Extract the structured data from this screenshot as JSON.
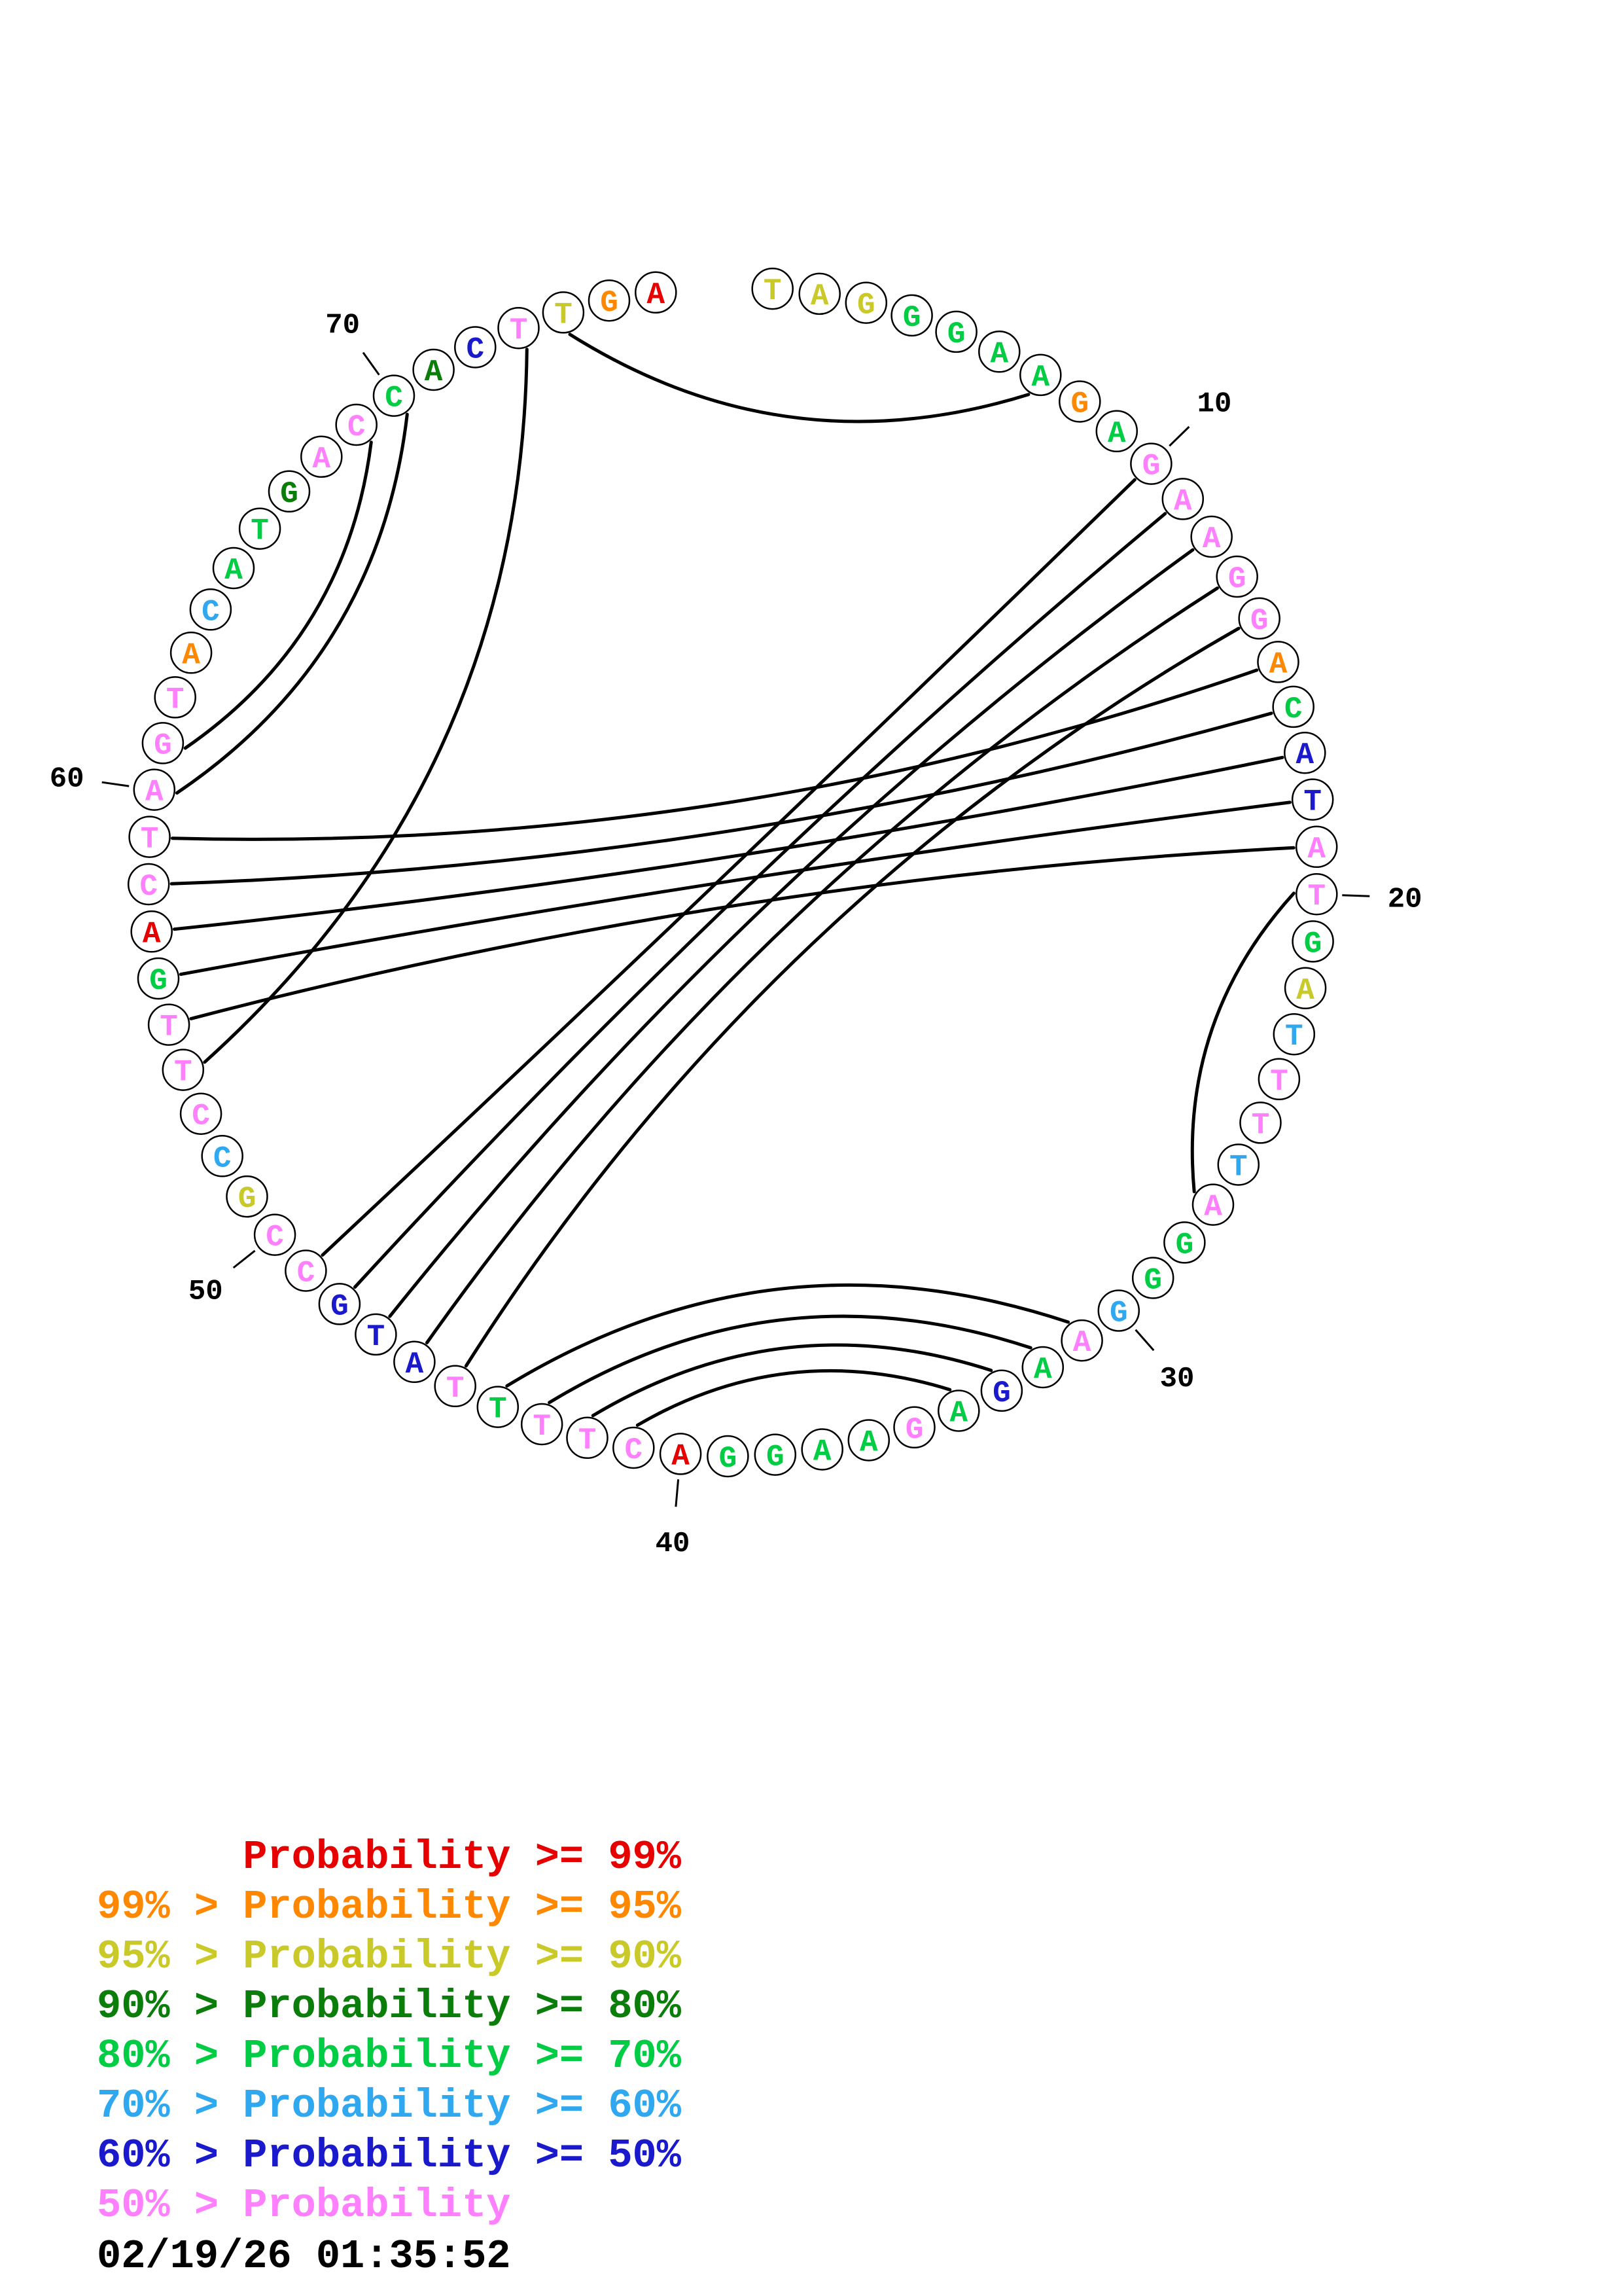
{
  "palette": {
    "red": "#e60000",
    "orange": "#ff8800",
    "yellow": "#c9c929",
    "darkgreen": "#0a7d0a",
    "green": "#00cc44",
    "skyblue": "#30a8f0",
    "blue": "#1a1acc",
    "pink": "#ff80ff",
    "arc": "#000000",
    "outline": "#000000",
    "label": "#000000"
  },
  "chart_data": {
    "type": "circular-rna-structure-plot",
    "length": 76,
    "sequence": "TAGGGAAGAGAAGGACATATGATTTTAGGGAAGAGAAGGACTTTTATGCCGCCTTGACTAGTACATGACCACTTGA",
    "nucleotides": [
      [
        "T",
        "yellow"
      ],
      [
        "A",
        "yellow"
      ],
      [
        "G",
        "yellow"
      ],
      [
        "G",
        "green"
      ],
      [
        "G",
        "green"
      ],
      [
        "A",
        "green"
      ],
      [
        "A",
        "green"
      ],
      [
        "G",
        "orange"
      ],
      [
        "A",
        "green"
      ],
      [
        "G",
        "pink"
      ],
      [
        "A",
        "pink"
      ],
      [
        "A",
        "pink"
      ],
      [
        "G",
        "pink"
      ],
      [
        "G",
        "pink"
      ],
      [
        "A",
        "orange"
      ],
      [
        "C",
        "green"
      ],
      [
        "A",
        "blue"
      ],
      [
        "T",
        "blue"
      ],
      [
        "A",
        "pink"
      ],
      [
        "T",
        "pink"
      ],
      [
        "G",
        "green"
      ],
      [
        "A",
        "yellow"
      ],
      [
        "T",
        "skyblue"
      ],
      [
        "T",
        "pink"
      ],
      [
        "T",
        "pink"
      ],
      [
        "T",
        "skyblue"
      ],
      [
        "A",
        "pink"
      ],
      [
        "G",
        "green"
      ],
      [
        "G",
        "green"
      ],
      [
        "G",
        "skyblue"
      ],
      [
        "A",
        "pink"
      ],
      [
        "A",
        "green"
      ],
      [
        "G",
        "blue"
      ],
      [
        "A",
        "green"
      ],
      [
        "G",
        "pink"
      ],
      [
        "A",
        "green"
      ],
      [
        "A",
        "green"
      ],
      [
        "G",
        "green"
      ],
      [
        "G",
        "green"
      ],
      [
        "A",
        "red"
      ],
      [
        "C",
        "pink"
      ],
      [
        "T",
        "pink"
      ],
      [
        "T",
        "pink"
      ],
      [
        "T",
        "green"
      ],
      [
        "T",
        "pink"
      ],
      [
        "A",
        "blue"
      ],
      [
        "T",
        "blue"
      ],
      [
        "G",
        "blue"
      ],
      [
        "C",
        "pink"
      ],
      [
        "C",
        "pink"
      ],
      [
        "G",
        "yellow"
      ],
      [
        "C",
        "skyblue"
      ],
      [
        "C",
        "pink"
      ],
      [
        "T",
        "pink"
      ],
      [
        "T",
        "pink"
      ],
      [
        "G",
        "green"
      ],
      [
        "A",
        "red"
      ],
      [
        "C",
        "pink"
      ],
      [
        "T",
        "pink"
      ],
      [
        "A",
        "pink"
      ],
      [
        "G",
        "pink"
      ],
      [
        "T",
        "pink"
      ],
      [
        "A",
        "orange"
      ],
      [
        "C",
        "skyblue"
      ],
      [
        "A",
        "green"
      ],
      [
        "T",
        "green"
      ],
      [
        "G",
        "darkgreen"
      ],
      [
        "A",
        "pink"
      ],
      [
        "C",
        "pink"
      ],
      [
        "C",
        "green"
      ],
      [
        "A",
        "darkgreen"
      ],
      [
        "C",
        "blue"
      ],
      [
        "T",
        "pink"
      ],
      [
        "T",
        "yellow"
      ],
      [
        "G",
        "orange"
      ],
      [
        "A",
        "red"
      ]
    ],
    "pairs": [
      [
        7,
        74
      ],
      [
        10,
        49
      ],
      [
        11,
        48
      ],
      [
        12,
        47
      ],
      [
        13,
        46
      ],
      [
        14,
        45
      ],
      [
        15,
        59
      ],
      [
        16,
        58
      ],
      [
        17,
        57
      ],
      [
        18,
        56
      ],
      [
        19,
        55
      ],
      [
        20,
        27
      ],
      [
        31,
        44
      ],
      [
        32,
        43
      ],
      [
        33,
        42
      ],
      [
        34,
        41
      ],
      [
        54,
        73
      ],
      [
        60,
        70
      ],
      [
        61,
        69
      ]
    ],
    "position_labels": [
      10,
      20,
      30,
      40,
      50,
      60,
      70
    ]
  },
  "legend": {
    "items": [
      {
        "text": "      Probability >= 99%",
        "color": "red"
      },
      {
        "text": "99% > Probability >= 95%",
        "color": "orange"
      },
      {
        "text": "95% > Probability >= 90%",
        "color": "yellow"
      },
      {
        "text": "90% > Probability >= 80%",
        "color": "darkgreen"
      },
      {
        "text": "80% > Probability >= 70%",
        "color": "green"
      },
      {
        "text": "70% > Probability >= 60%",
        "color": "skyblue"
      },
      {
        "text": "60% > Probability >= 50%",
        "color": "blue"
      },
      {
        "text": "50% > Probability",
        "color": "pink"
      }
    ]
  },
  "timestamp": "02/19/26 01:35:52"
}
